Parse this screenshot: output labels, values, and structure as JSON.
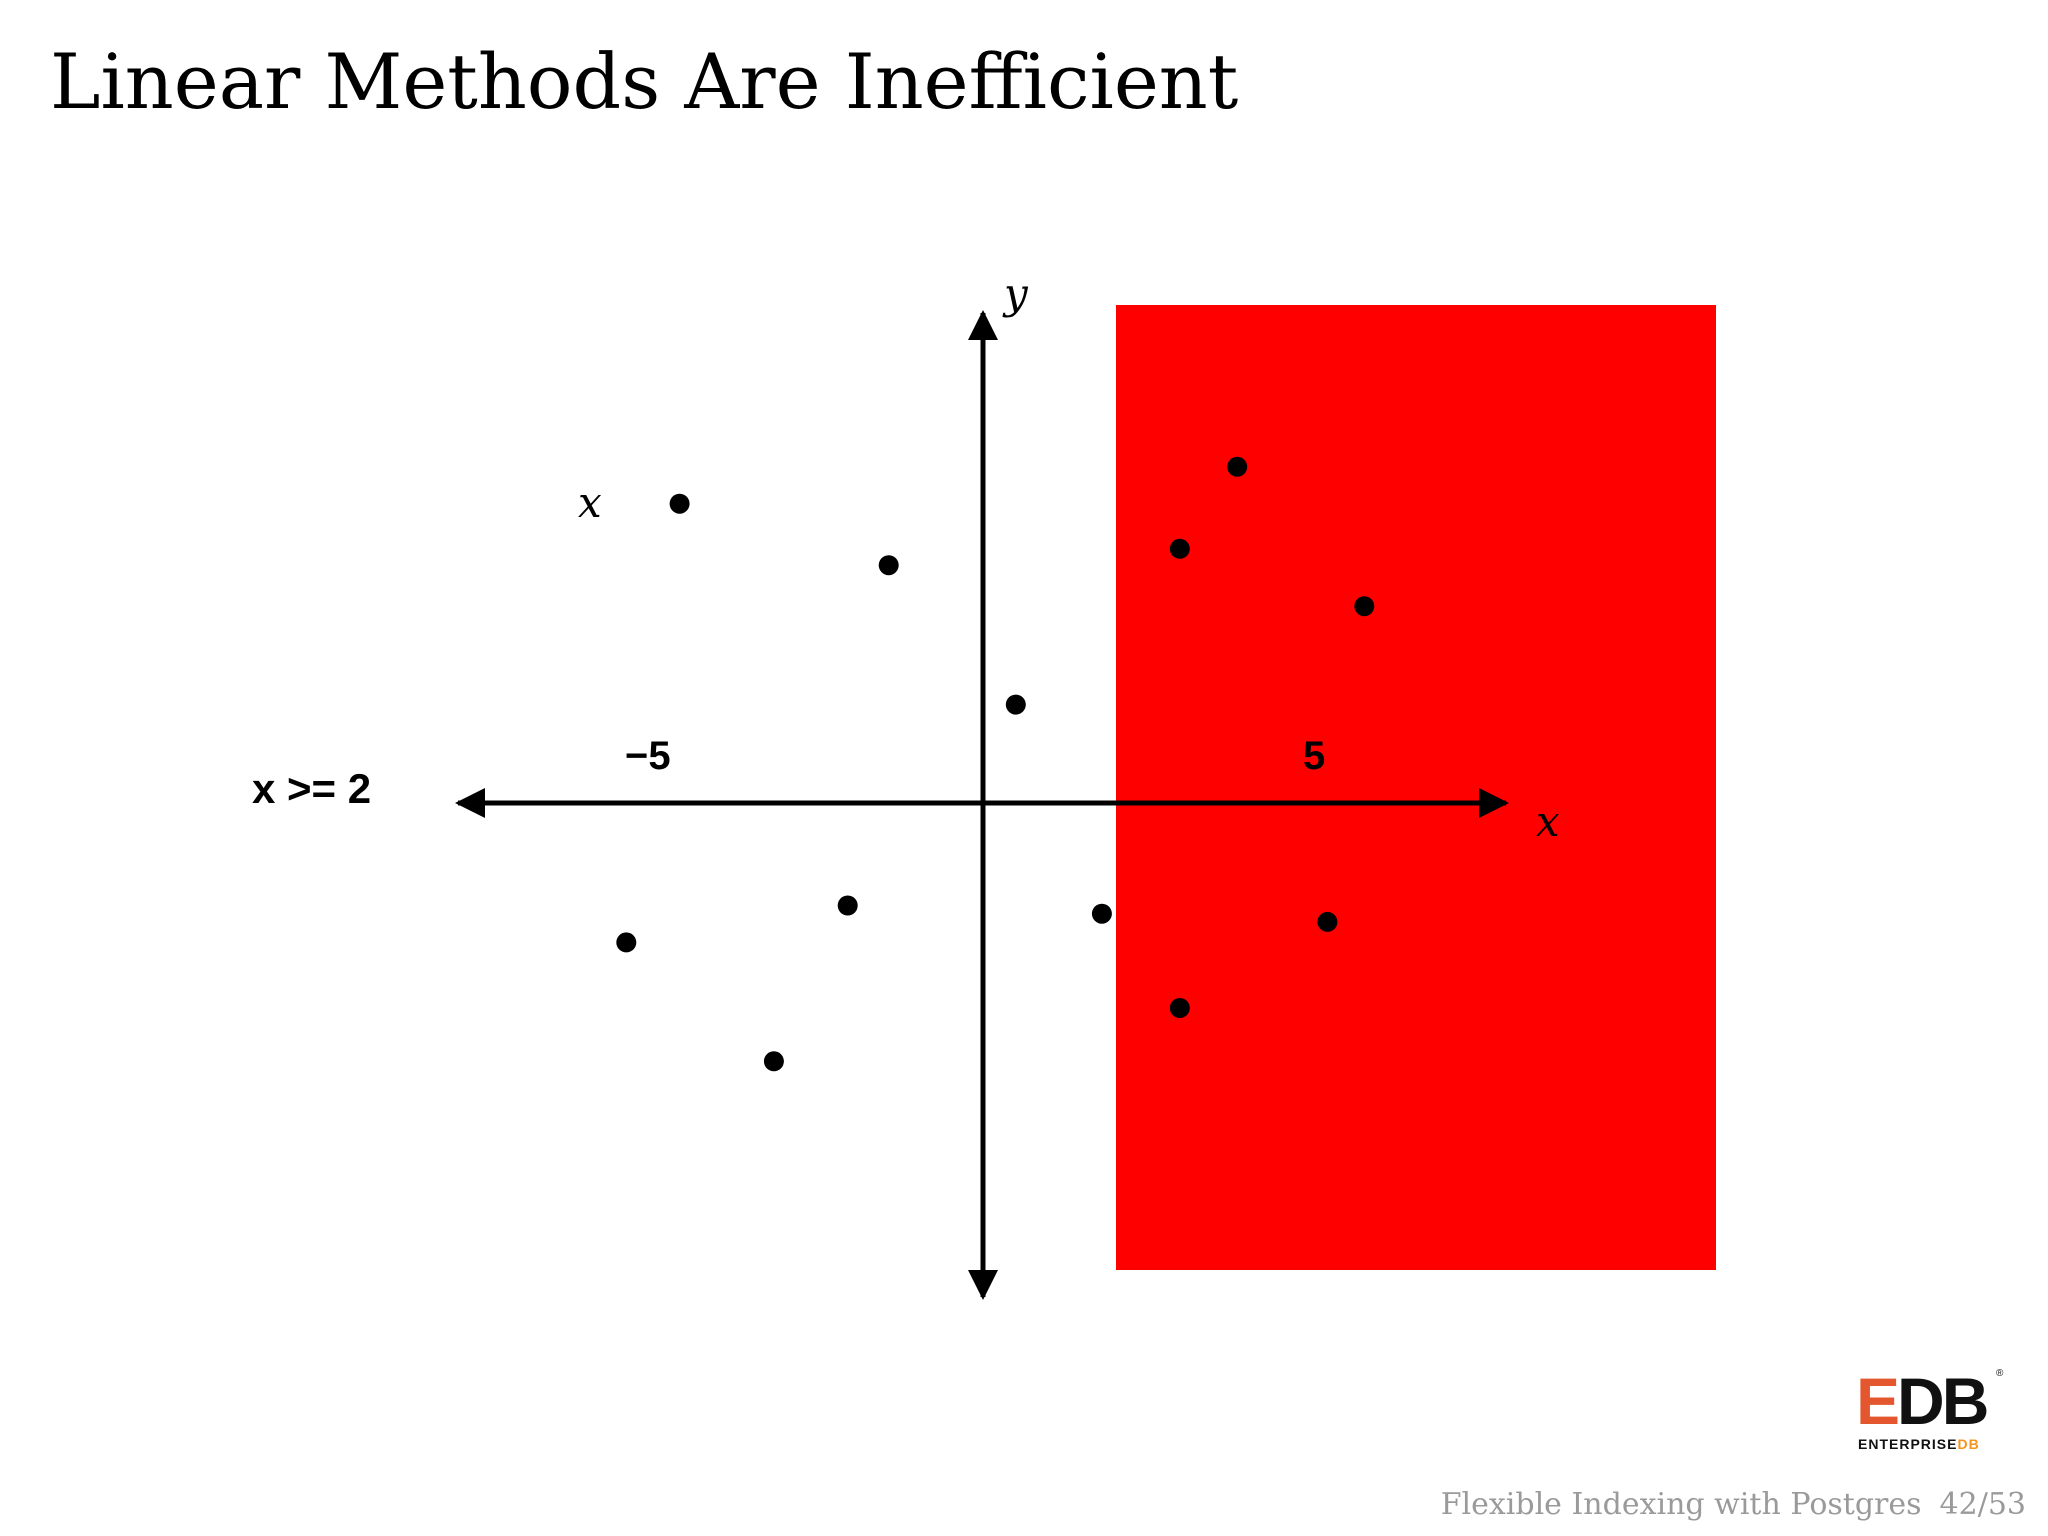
{
  "slide": {
    "title": "Linear Methods Are Inefficient"
  },
  "diagram": {
    "query_label": "x >= 2",
    "stray_label": "x",
    "x_axis_label": "x",
    "y_axis_label": "y",
    "tick_neg": "−5",
    "tick_pos": "5",
    "highlight_color": "#ff0000",
    "highlight_region": {
      "x_min": 2
    },
    "points": [
      {
        "x": -7.4,
        "y": 7.3
      },
      {
        "x": -2.3,
        "y": 5.8
      },
      {
        "x": 0.8,
        "y": 2.4
      },
      {
        "x": 6.2,
        "y": 8.2
      },
      {
        "x": 4.8,
        "y": 6.2
      },
      {
        "x": 9.3,
        "y": 4.8
      },
      {
        "x": -3.3,
        "y": -2.5
      },
      {
        "x": -8.7,
        "y": -3.4
      },
      {
        "x": 2.9,
        "y": -2.7
      },
      {
        "x": 8.4,
        "y": -2.9
      },
      {
        "x": 4.8,
        "y": -5.0
      },
      {
        "x": -5.1,
        "y": -6.3
      }
    ]
  },
  "logo": {
    "mark_e": "E",
    "mark_db": "DB",
    "registered": "®",
    "word_a": "ENTERPRISE",
    "word_b": "DB"
  },
  "footer": {
    "text": "Flexible Indexing with Postgres",
    "page": "42/53"
  }
}
